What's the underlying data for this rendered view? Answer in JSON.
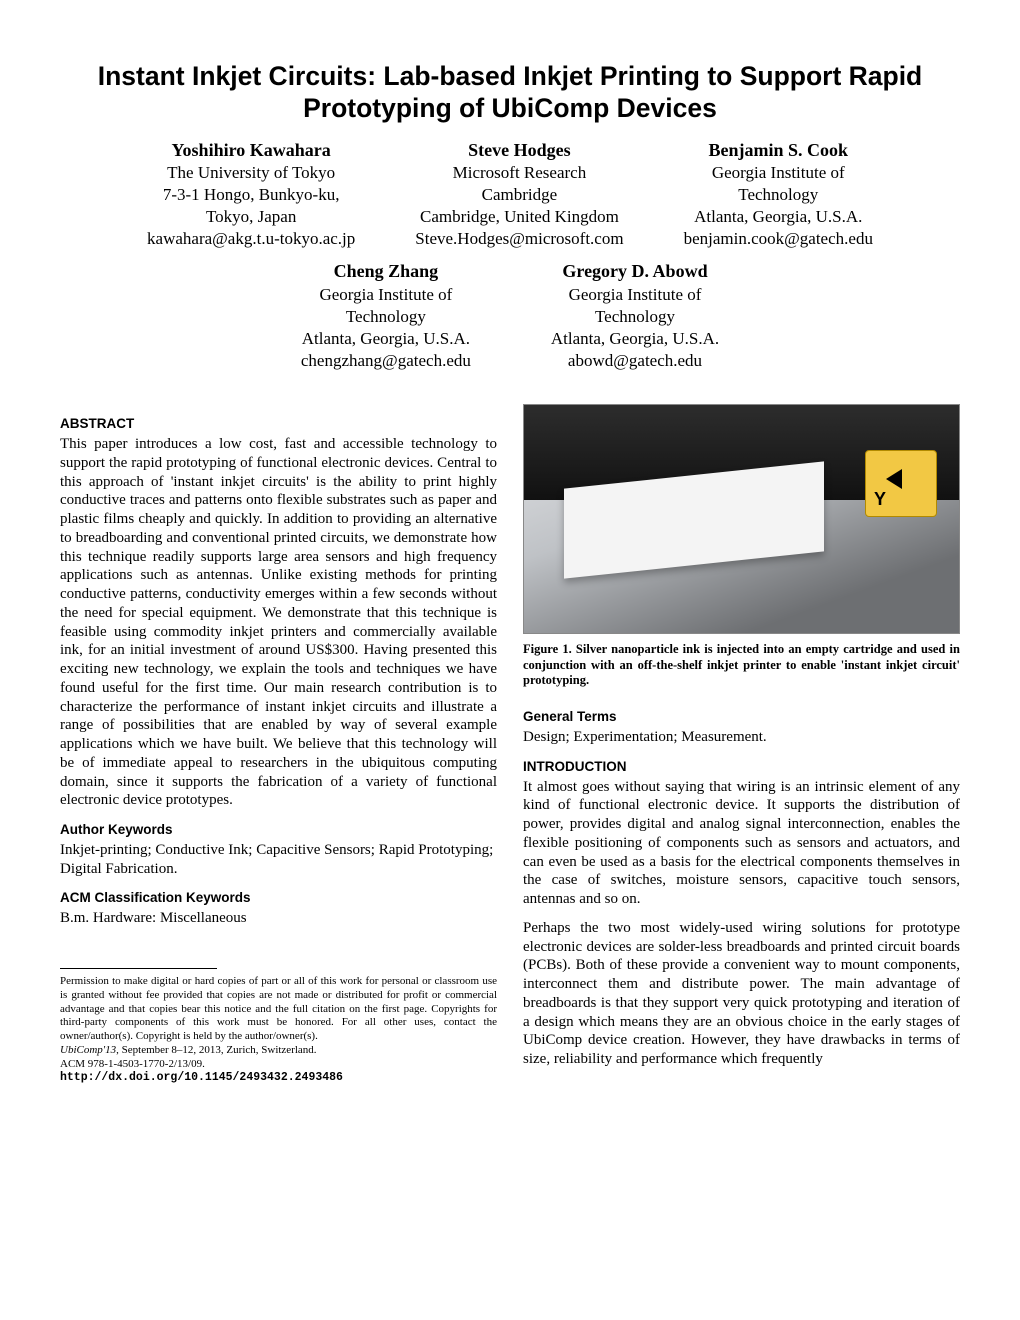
{
  "title": "Instant Inkjet Circuits: Lab-based Inkjet Printing to Support Rapid Prototyping of UbiComp Devices",
  "authors_top": [
    {
      "name": "Yoshihiro Kawahara",
      "l1": "The University of Tokyo",
      "l2": "7-3-1 Hongo, Bunkyo-ku,",
      "l3": "Tokyo, Japan",
      "email": "kawahara@akg.t.u-tokyo.ac.jp"
    },
    {
      "name": "Steve Hodges",
      "l1": "Microsoft Research",
      "l2": "Cambridge",
      "l3": "Cambridge, United Kingdom",
      "email": "Steve.Hodges@microsoft.com"
    },
    {
      "name": "Benjamin S. Cook",
      "l1": "Georgia Institute of",
      "l2": "Technology",
      "l3": "Atlanta, Georgia, U.S.A.",
      "email": "benjamin.cook@gatech.edu"
    }
  ],
  "authors_bottom": [
    {
      "name": "Cheng Zhang",
      "l1": "Georgia Institute of",
      "l2": "Technology",
      "l3": "Atlanta, Georgia, U.S.A.",
      "email": "chengzhang@gatech.edu"
    },
    {
      "name": "Gregory D. Abowd",
      "l1": "Georgia Institute of",
      "l2": "Technology",
      "l3": "Atlanta, Georgia, U.S.A.",
      "email": "abowd@gatech.edu"
    }
  ],
  "sections": {
    "abstract_head": "ABSTRACT",
    "abstract_text": "This paper introduces a low cost, fast and accessible technology to support the rapid prototyping of functional electronic devices. Central to this approach of 'instant inkjet circuits' is the ability to print highly conductive traces and patterns onto flexible substrates such as paper and plastic films cheaply and quickly. In addition to providing an alternative to breadboarding and conventional printed circuits, we demonstrate how this technique readily supports large area sensors and high frequency applications such as antennas. Unlike existing methods for printing conductive patterns, conductivity emerges within a few seconds without the need for special equipment. We demonstrate that this technique is feasible using commodity inkjet printers and commercially available ink, for an initial investment of around US$300. Having presented this exciting new technology, we explain the tools and techniques we have found useful for the first time. Our main research contribution is to characterize the performance of instant inkjet circuits and illustrate a range of possibilities that are enabled by way of several example applications which we have built. We believe that this technology will be of immediate appeal to researchers in the ubiquitous computing domain, since it supports the fabrication of a variety of functional electronic device prototypes.",
    "author_kw_head": "Author Keywords",
    "author_kw_text": "Inkjet-printing; Conductive Ink; Capacitive Sensors; Rapid Prototyping; Digital Fabrication.",
    "acm_head": "ACM Classification Keywords",
    "acm_text": "B.m. Hardware: Miscellaneous",
    "general_head": "General Terms",
    "general_text": "Design; Experimentation; Measurement.",
    "intro_head": "INTRODUCTION",
    "intro_p1": "It almost goes without saying that wiring is an intrinsic element of any kind of functional electronic device. It supports the distribution of power, provides digital and analog signal interconnection, enables the flexible positioning of components such as sensors and actuators, and can even be used as a basis for the electrical components themselves in the case of switches, moisture sensors, capacitive touch sensors, antennas and so on.",
    "intro_p2": "Perhaps the two most widely-used wiring solutions for prototype electronic devices are solder-less breadboards and printed circuit boards (PCBs). Both of these provide a convenient way to mount components, interconnect them and distribute power. The main advantage of breadboards is that they support very quick prototyping and iteration of a design which means they are an obvious choice in the early stages of UbiComp device creation. However, they have drawbacks in terms of size, reliability and performance which frequently"
  },
  "figure_caption": "Figure 1. Silver nanoparticle ink is injected into an empty cartridge and used in conjunction with an off-the-shelf inkjet printer to enable 'instant inkjet circuit' prototyping.",
  "permission": {
    "text": "Permission to make digital or hard copies of part or all of this work for personal or classroom use is granted without fee provided that copies are not made or distributed for profit or commercial advantage and that copies bear this notice and the full citation on the first page. Copyrights for third-party components of this work must be honored. For all other uses, contact the owner/author(s). Copyright is held by the author/owner(s).",
    "conf": "UbiComp'13",
    "conf_rest": ", September 8–12, 2013, Zurich, Switzerland.",
    "acm": "ACM 978-1-4503-1770-2/13/09.",
    "doi": "http://dx.doi.org/10.1145/2493432.2493486"
  }
}
